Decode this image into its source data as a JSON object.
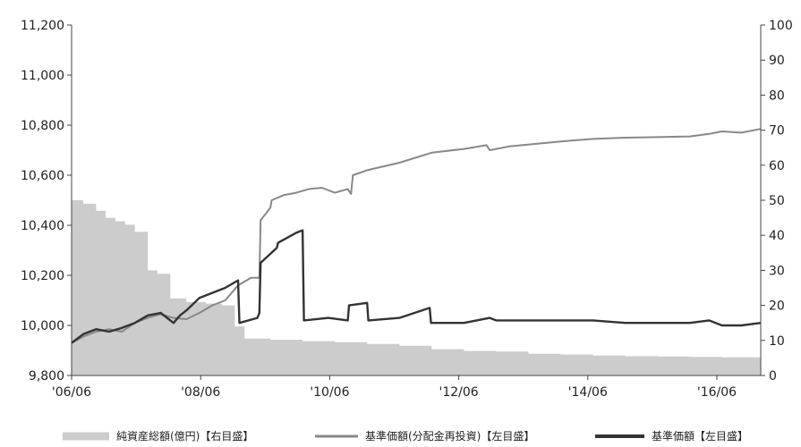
{
  "chart_data": {
    "type": "line",
    "x_ticks": [
      "'06/06",
      "'08/06",
      "'10/06",
      "'12/06",
      "'14/06",
      "'16/06"
    ],
    "x_range": [
      2006.42,
      2017.1
    ],
    "y_left": {
      "range": [
        9800,
        11200
      ],
      "ticks": [
        "9,800",
        "10,000",
        "10,200",
        "10,400",
        "10,600",
        "10,800",
        "11,000",
        "11,200"
      ],
      "tick_values": [
        9800,
        10000,
        10200,
        10400,
        10600,
        10800,
        11000,
        11200
      ]
    },
    "y_right": {
      "range": [
        0,
        100
      ],
      "ticks": [
        "0",
        "10",
        "20",
        "30",
        "40",
        "50",
        "60",
        "70",
        "80",
        "90",
        "100"
      ],
      "tick_values": [
        0,
        10,
        20,
        30,
        40,
        50,
        60,
        70,
        80,
        90,
        100
      ]
    },
    "grid": false,
    "legend_position": "bottom",
    "series": [
      {
        "name": "純資産総額(億円)【右目盛】",
        "kind": "area",
        "axis": "right",
        "color": "#cccccc",
        "x": [
          2006.42,
          2006.6,
          2006.8,
          2006.95,
          2007.1,
          2007.25,
          2007.4,
          2007.6,
          2007.75,
          2007.95,
          2008.2,
          2008.5,
          2008.75,
          2008.95,
          2009.1,
          2009.5,
          2010.0,
          2010.5,
          2011.0,
          2011.5,
          2012.0,
          2012.5,
          2013.0,
          2013.5,
          2014.0,
          2014.5,
          2015.0,
          2015.5,
          2016.0,
          2016.5,
          2017.1
        ],
        "values": [
          50,
          49,
          47,
          45,
          44,
          43,
          41,
          30,
          29,
          22,
          21,
          20.5,
          20,
          14,
          10.5,
          10.2,
          9.8,
          9.5,
          9,
          8.5,
          7.5,
          7,
          6.8,
          6.2,
          6,
          5.7,
          5.5,
          5.4,
          5.3,
          5.2,
          5
        ]
      },
      {
        "name": "基準価額(分配金再投資)【左目盛】",
        "kind": "line",
        "axis": "left",
        "color": "#888888",
        "x": [
          2006.42,
          2006.6,
          2006.8,
          2007.0,
          2007.2,
          2007.4,
          2007.6,
          2007.8,
          2008.0,
          2008.2,
          2008.4,
          2008.6,
          2008.8,
          2009.0,
          2009.2,
          2009.33,
          2009.35,
          2009.5,
          2009.52,
          2009.7,
          2009.9,
          2010.1,
          2010.3,
          2010.5,
          2010.7,
          2010.75,
          2010.78,
          2011.0,
          2011.5,
          2012.0,
          2012.5,
          2012.85,
          2012.9,
          2013.2,
          2013.6,
          2014.0,
          2014.5,
          2015.0,
          2015.5,
          2016.0,
          2016.3,
          2016.5,
          2016.8,
          2017.1
        ],
        "values": [
          9930,
          9955,
          9975,
          9985,
          9975,
          10010,
          10030,
          10045,
          10030,
          10025,
          10050,
          10080,
          10100,
          10160,
          10190,
          10190,
          10420,
          10470,
          10500,
          10520,
          10530,
          10545,
          10550,
          10530,
          10545,
          10525,
          10600,
          10620,
          10650,
          10690,
          10705,
          10720,
          10700,
          10715,
          10725,
          10735,
          10745,
          10750,
          10752,
          10755,
          10765,
          10775,
          10770,
          10785
        ]
      },
      {
        "name": "基準価額【左目盛】",
        "kind": "line",
        "axis": "left",
        "color": "#333333",
        "x": [
          2006.42,
          2006.6,
          2006.8,
          2007.0,
          2007.2,
          2007.4,
          2007.6,
          2007.8,
          2008.0,
          2008.1,
          2008.2,
          2008.4,
          2008.6,
          2008.8,
          2009.0,
          2009.02,
          2009.3,
          2009.33,
          2009.35,
          2009.6,
          2009.62,
          2009.9,
          2010.0,
          2010.02,
          2010.4,
          2010.7,
          2010.72,
          2011.0,
          2011.02,
          2011.5,
          2011.97,
          2011.99,
          2012.5,
          2012.9,
          2013.0,
          2013.5,
          2014.0,
          2014.5,
          2015.0,
          2015.5,
          2016.0,
          2016.3,
          2016.5,
          2016.8,
          2017.1
        ],
        "values": [
          9930,
          9965,
          9985,
          9975,
          9990,
          10010,
          10040,
          10050,
          10010,
          10040,
          10060,
          10110,
          10130,
          10150,
          10180,
          10010,
          10030,
          10050,
          10250,
          10310,
          10330,
          10370,
          10380,
          10020,
          10030,
          10020,
          10080,
          10090,
          10020,
          10030,
          10070,
          10010,
          10010,
          10030,
          10020,
          10020,
          10020,
          10020,
          10010,
          10010,
          10010,
          10020,
          10000,
          10000,
          10010
        ]
      }
    ]
  }
}
